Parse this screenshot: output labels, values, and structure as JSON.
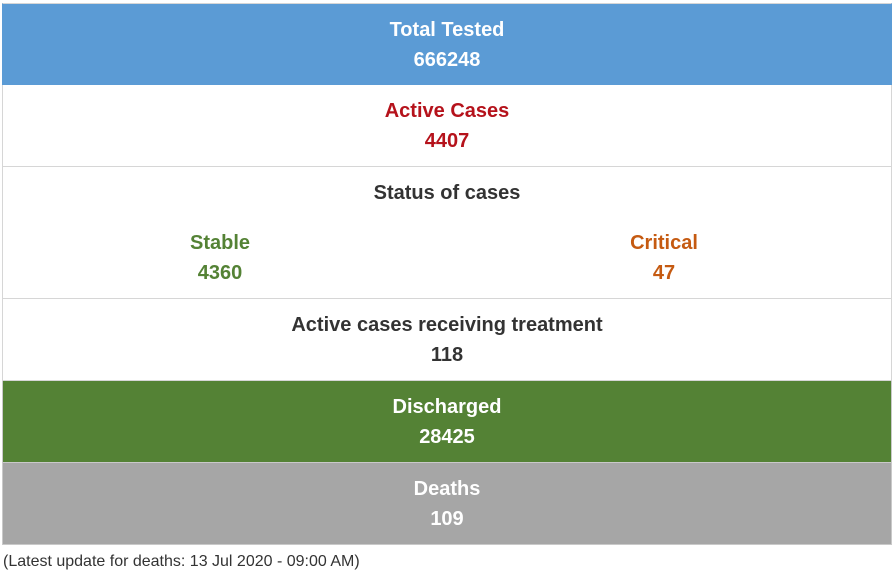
{
  "total_tested": {
    "label": "Total Tested",
    "value": "666248"
  },
  "active_cases": {
    "label": "Active Cases",
    "value": "4407"
  },
  "status": {
    "title": "Status of cases",
    "stable": {
      "label": "Stable",
      "value": "4360"
    },
    "critical": {
      "label": "Critical",
      "value": "47"
    }
  },
  "treatment": {
    "label": "Active cases receiving treatment",
    "value": "118"
  },
  "discharged": {
    "label": "Discharged",
    "value": "28425"
  },
  "deaths": {
    "label": "Deaths",
    "value": "109"
  },
  "footnote": "(Latest update for deaths: 13 Jul 2020 - 09:00 AM)",
  "colors": {
    "tested_bg": "#5b9bd5",
    "active_text": "#b5121b",
    "stable_text": "#548235",
    "critical_text": "#c55a11",
    "discharged_bg": "#548235",
    "deaths_bg": "#a6a6a6"
  }
}
